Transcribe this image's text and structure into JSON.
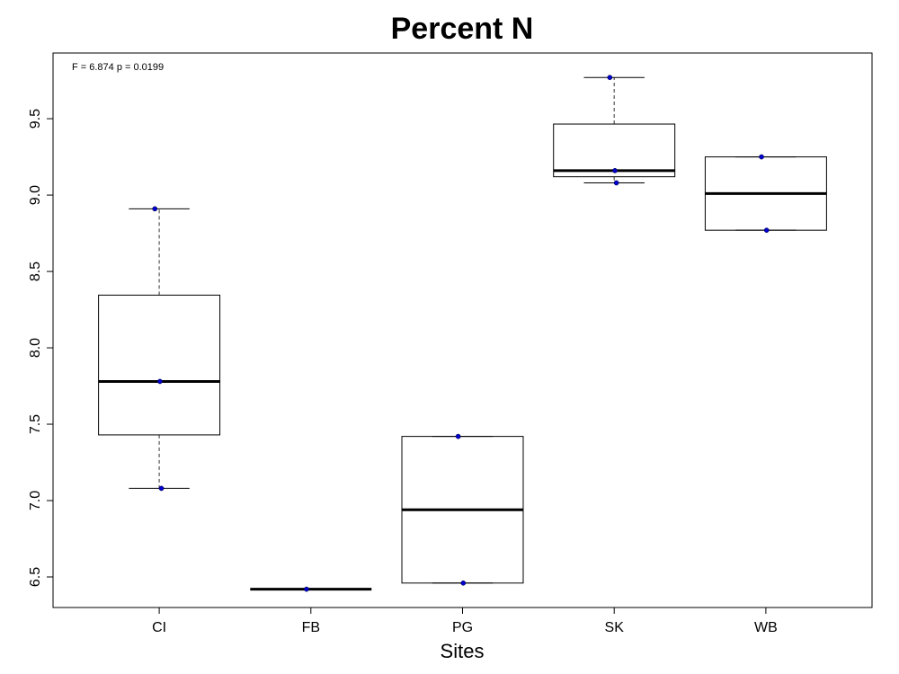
{
  "chart_data": {
    "type": "box",
    "title": "Percent N",
    "xlabel": "Sites",
    "ylabel": "",
    "annotation": "F = 6.874 p = 0.0199",
    "categories": [
      "CI",
      "FB",
      "PG",
      "SK",
      "WB"
    ],
    "ylim": [
      6.3,
      9.93
    ],
    "yticks": [
      6.5,
      7.0,
      7.5,
      8.0,
      8.5,
      9.0,
      9.5
    ],
    "ytick_labels": [
      "6.5",
      "7.0",
      "7.5",
      "8.0",
      "8.5",
      "9.0",
      "9.5"
    ],
    "boxes": [
      {
        "category": "CI",
        "min": 7.08,
        "q1": 7.43,
        "median": 7.78,
        "q3": 8.345,
        "max": 8.91
      },
      {
        "category": "FB",
        "min": 6.42,
        "q1": 6.42,
        "median": 6.42,
        "q3": 6.42,
        "max": 6.42
      },
      {
        "category": "PG",
        "min": 6.46,
        "q1": 6.46,
        "median": 6.94,
        "q3": 7.42,
        "max": 7.42
      },
      {
        "category": "SK",
        "min": 9.08,
        "q1": 9.12,
        "median": 9.16,
        "q3": 9.465,
        "max": 9.77
      },
      {
        "category": "WB",
        "min": 8.77,
        "q1": 8.77,
        "median": 9.01,
        "q3": 9.25,
        "max": 9.25
      }
    ],
    "points": [
      {
        "category": "CI",
        "y": 8.91
      },
      {
        "category": "CI",
        "y": 7.78
      },
      {
        "category": "CI",
        "y": 7.08
      },
      {
        "category": "FB",
        "y": 6.42
      },
      {
        "category": "PG",
        "y": 7.42
      },
      {
        "category": "PG",
        "y": 6.46
      },
      {
        "category": "SK",
        "y": 9.77
      },
      {
        "category": "SK",
        "y": 9.16
      },
      {
        "category": "SK",
        "y": 9.08
      },
      {
        "category": "WB",
        "y": 9.25
      },
      {
        "category": "WB",
        "y": 8.77
      }
    ],
    "point_color": "#0000cc",
    "grid": false,
    "legend": "none"
  }
}
